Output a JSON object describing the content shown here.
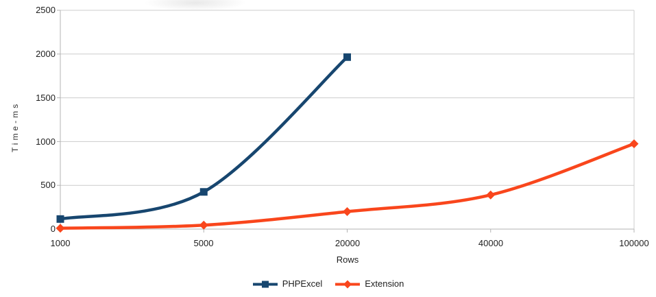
{
  "chart_data": {
    "type": "line",
    "title": "",
    "xlabel": "Rows",
    "ylabel": "Time-ms",
    "categories": [
      "1000",
      "5000",
      "20000",
      "40000",
      "100000"
    ],
    "series": [
      {
        "name": "PHPExcel",
        "color": "#17466f",
        "marker": "square",
        "values": [
          115,
          425,
          1965
        ]
      },
      {
        "name": "Extension",
        "color": "#f9461c",
        "marker": "diamond",
        "values": [
          10,
          45,
          200,
          390,
          975
        ]
      }
    ],
    "ylim": [
      0,
      2500
    ],
    "yticks": [
      0,
      500,
      1000,
      1500,
      2000,
      2500
    ],
    "ytick_labels": [
      "0",
      "500",
      "1000",
      "1500",
      "2000",
      "2500"
    ],
    "grid": "horizontal gridlines every 500, right plot border line",
    "legend_position": "bottom",
    "smooth": true
  },
  "colors": {
    "gridline": "#cccccc",
    "axis": "#b3b3b3",
    "text": "#1e1e1e",
    "background": "#ffffff"
  }
}
